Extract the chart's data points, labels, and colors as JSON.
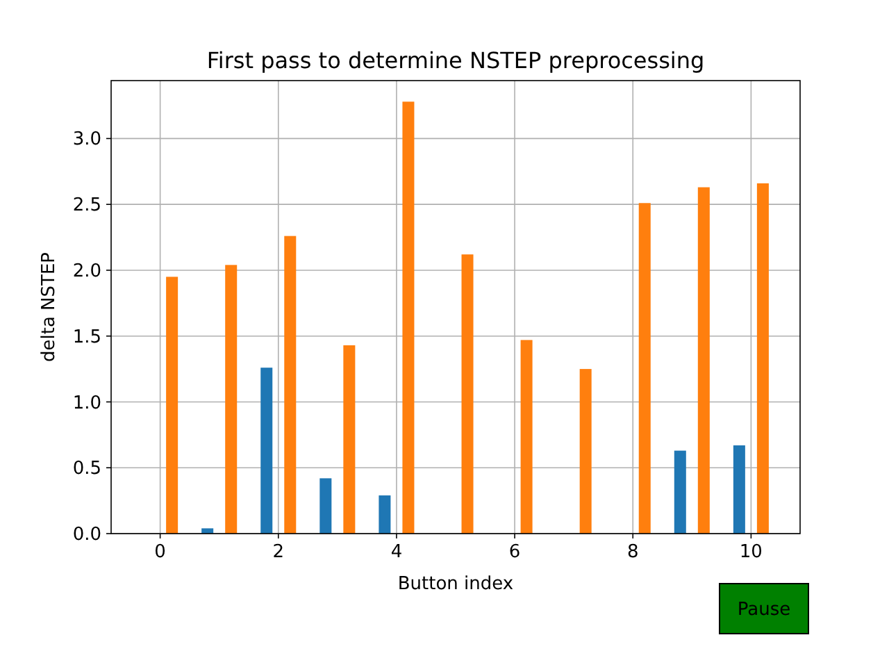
{
  "chart_data": {
    "type": "bar",
    "title": "First pass to determine NSTEP preprocessing",
    "xlabel": "Button index",
    "ylabel": "delta NSTEP",
    "xlim": [
      -0.83,
      10.83
    ],
    "xticks": [
      0,
      2,
      4,
      6,
      8,
      10
    ],
    "ylim": [
      0,
      3.44
    ],
    "yticks": [
      {
        "value": 0,
        "label": "0.0"
      },
      {
        "value": 0.5,
        "label": "0.5"
      },
      {
        "value": 1,
        "label": "1.0"
      },
      {
        "value": 1.5,
        "label": "1.5"
      },
      {
        "value": 2,
        "label": "2.0"
      },
      {
        "value": 2.5,
        "label": "2.5"
      },
      {
        "value": 3,
        "label": "3.0"
      }
    ],
    "grid": true,
    "series": [
      {
        "color": "#1f77b4",
        "x": [
          -0.2,
          0.8,
          1.8,
          2.8,
          3.8,
          4.8,
          5.8,
          6.8,
          7.8,
          8.8,
          9.8
        ],
        "values": [
          0,
          0.04,
          1.26,
          0.42,
          0.29,
          0,
          0,
          0,
          0,
          0.63,
          0.67
        ]
      },
      {
        "color": "#ff7f0e",
        "x": [
          0.2,
          1.2,
          2.2,
          3.2,
          4.2,
          5.2,
          6.2,
          7.2,
          8.2,
          9.2,
          10.2
        ],
        "values": [
          1.95,
          2.04,
          2.26,
          1.43,
          3.28,
          2.12,
          1.47,
          1.25,
          2.51,
          2.63,
          2.66
        ]
      }
    ],
    "annotations": [
      "Pause"
    ]
  }
}
